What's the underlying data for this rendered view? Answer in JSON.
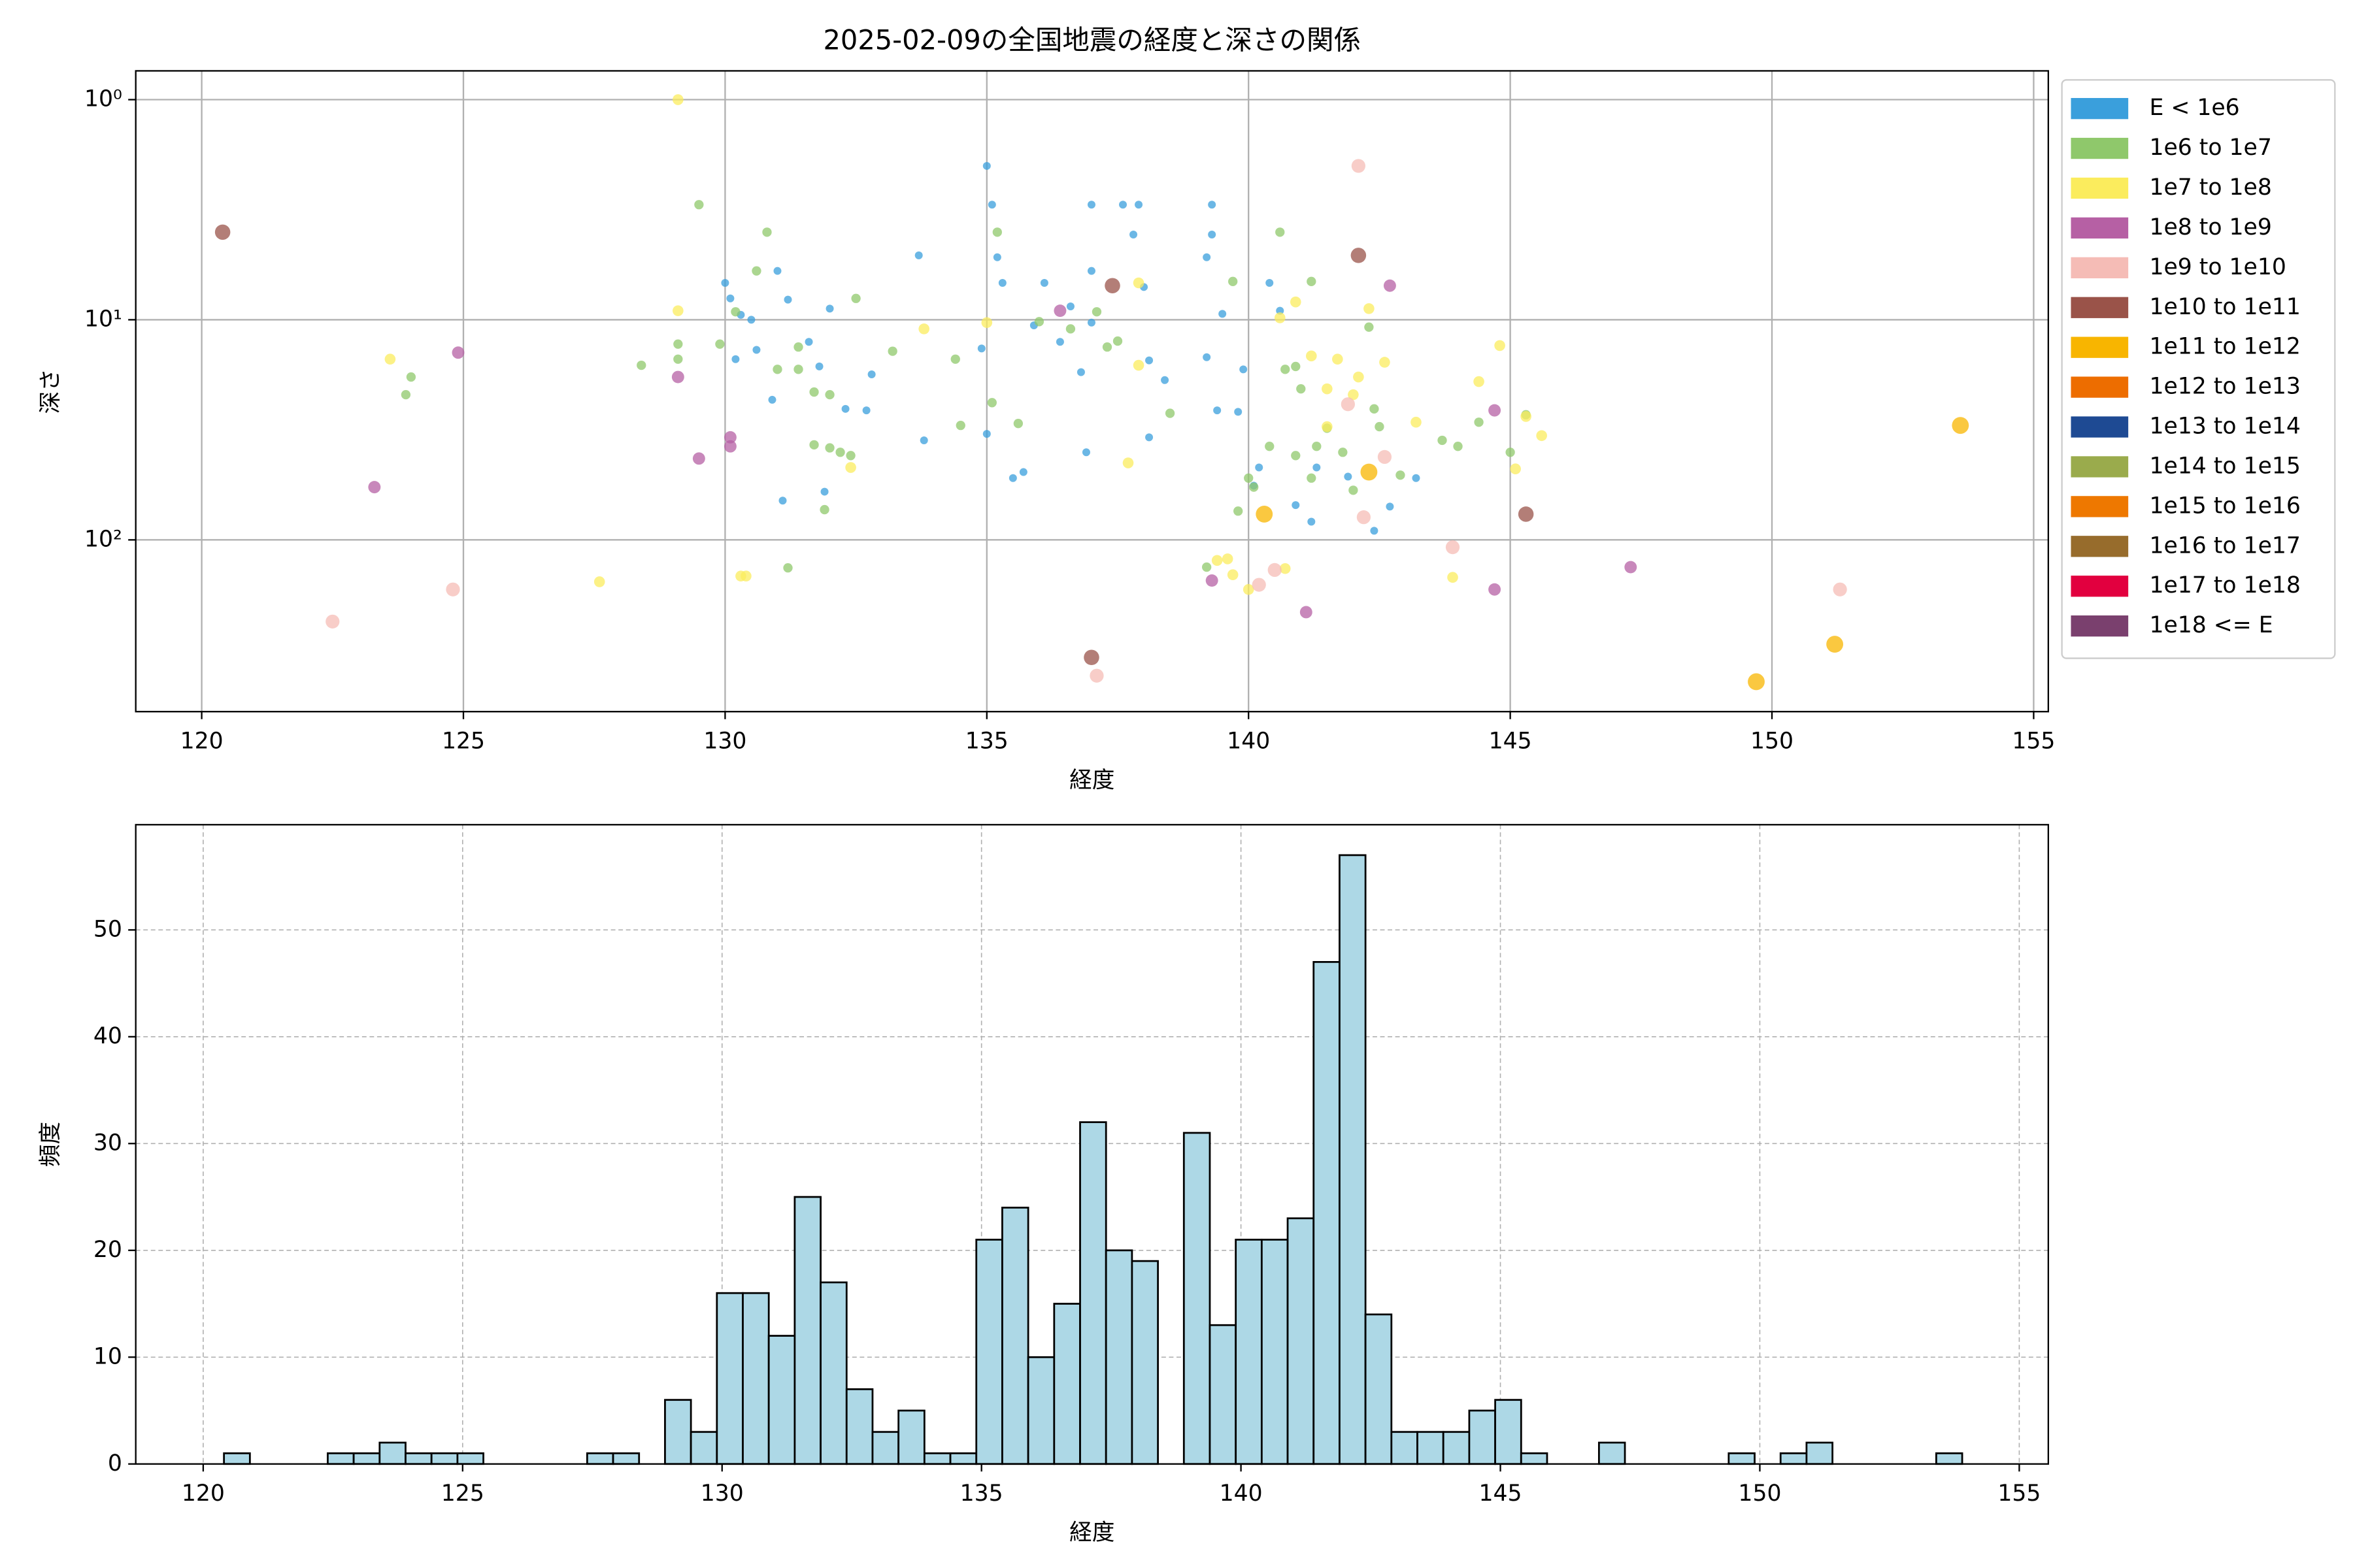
{
  "chart_data": [
    {
      "type": "scatter",
      "title": "2025-02-09の全国地震の経度と深さの関係",
      "xlabel": "経度",
      "ylabel": "深さ",
      "xlim": [
        118.74,
        155.28
      ],
      "ylim": [
        0.74,
        603
      ],
      "yscale": "log",
      "y_inverted": true,
      "grid": true,
      "legend": "outside right",
      "xticks": [
        120,
        125,
        130,
        135,
        140,
        145,
        150,
        155
      ],
      "yticks": [
        {
          "value": 1,
          "label": "10⁰"
        },
        {
          "value": 10,
          "label": "10¹"
        },
        {
          "value": 100,
          "label": "10²"
        }
      ],
      "series": [
        {
          "name": "E < 1e6",
          "color": "#3a9fdc",
          "x": [
            130.0,
            130.1,
            130.3,
            130.5,
            130.2,
            130.6,
            131.0,
            131.2,
            130.9,
            131.1,
            131.6,
            131.8,
            131.9,
            132.0,
            132.3,
            132.7,
            132.8,
            133.7,
            133.8,
            135.0,
            135.1,
            135.2,
            135.3,
            134.9,
            135.0,
            135.5,
            135.7,
            135.9,
            136.1,
            136.4,
            136.6,
            136.8,
            137.0,
            137.0,
            137.0,
            136.9,
            137.6,
            137.9,
            137.8,
            138.0,
            138.1,
            138.1,
            138.4,
            139.2,
            139.2,
            139.3,
            139.3,
            139.5,
            139.4,
            139.8,
            140.2,
            140.4,
            140.6,
            140.9,
            141.2,
            141.3,
            141.9,
            142.4,
            142.7,
            143.2,
            140.1,
            139.9
          ],
          "values": [
            6.8,
            8.0,
            9.5,
            10,
            15.1,
            13.7,
            6.0,
            8.1,
            23.1,
            66.3,
            12.6,
            16.3,
            60.4,
            8.9,
            25.4,
            25.8,
            17.7,
            5.1,
            35.3,
            2.0,
            3.0,
            5.2,
            6.8,
            13.5,
            33.0,
            52.4,
            49.2,
            10.6,
            6.8,
            12.6,
            8.7,
            17.3,
            3.0,
            6.0,
            10.3,
            40,
            3.0,
            3.0,
            4.1,
            7.1,
            15.3,
            34.2,
            18.8,
            5.2,
            14.8,
            3.0,
            4.1,
            9.4,
            25.8,
            26.2,
            46.9,
            6.8,
            9.1,
            69.5,
            82.7,
            46.9,
            51.6,
            90.9,
            70.6,
            52.4,
            56.7,
            16.8
          ]
        },
        {
          "name": "1e6 to 1e7",
          "color": "#8fc86b",
          "x": [
            128.4,
            129.1,
            129.1,
            129.5,
            129.9,
            130.2,
            130.8,
            130.6,
            131.0,
            131.2,
            131.4,
            131.7,
            131.7,
            132.0,
            131.9,
            132.2,
            132.4,
            132.5,
            133.2,
            134.5,
            134.4,
            135.2,
            135.1,
            135.6,
            136.0,
            136.6,
            137.1,
            137.3,
            137.5,
            138.5,
            139.2,
            139.7,
            139.8,
            140.0,
            140.1,
            140.4,
            140.6,
            140.9,
            141.2,
            140.9,
            141.3,
            141.5,
            141.8,
            142.0,
            142.3,
            142.4,
            142.9,
            143.7,
            144.0,
            144.4,
            145.0,
            145.3,
            123.9,
            124.0,
            131.4,
            132.0,
            140.7,
            141.0,
            142.5,
            141.2
          ],
          "values": [
            16.1,
            12.9,
            15.1,
            3.0,
            12.9,
            9.2,
            4.0,
            6.0,
            16.8,
            134,
            16.8,
            37,
            21.3,
            38.2,
            72.9,
            40,
            41.4,
            8.0,
            13.9,
            30.2,
            15.1,
            4.0,
            23.8,
            29.6,
            10.2,
            11,
            9.2,
            13.3,
            12.5,
            26.6,
            133,
            6.7,
            74,
            52.4,
            57.6,
            37.6,
            4.0,
            16.3,
            6.7,
            41.4,
            37.6,
            31.1,
            40,
            59.5,
            10.8,
            25.4,
            50.8,
            35.3,
            37.6,
            29.2,
            40,
            27.0,
            21.9,
            18.2,
            13.3,
            21.9,
            16.8,
            20.6,
            30.6,
            52.4
          ]
        },
        {
          "name": "1e7 to 1e8",
          "color": "#fbec5d",
          "x": [
            129.1,
            123.6,
            127.6,
            129.1,
            130.3,
            130.4,
            132.4,
            135.0,
            133.8,
            137.9,
            137.7,
            139.4,
            139.6,
            140.0,
            139.7,
            140.7,
            140.6,
            140.9,
            141.2,
            141.5,
            141.7,
            142.1,
            142.3,
            142.6,
            143.2,
            143.9,
            144.4,
            144.8,
            145.1,
            145.3,
            145.6,
            137.9,
            141.5,
            142.0
          ],
          "values": [
            1.0,
            15.1,
            155,
            9.1,
            146,
            146,
            46.9,
            10.3,
            11,
            16.1,
            44.7,
            124,
            122,
            168,
            144,
            135,
            9.8,
            8.3,
            14.6,
            20.6,
            15.1,
            18.2,
            8.9,
            15.6,
            29.2,
            148,
            19.1,
            13.1,
            47.6,
            27.5,
            33.6,
            6.8,
            30.6,
            21.9
          ]
        },
        {
          "name": "1e8 to 1e9",
          "color": "#b660a4",
          "x": [
            123.3,
            124.9,
            129.1,
            129.5,
            130.1,
            130.1,
            136.4,
            142.7,
            144.7,
            144.7,
            147.3,
            139.3,
            141.1
          ],
          "values": [
            57.6,
            14.1,
            18.2,
            42.7,
            34.2,
            37.6,
            9.1,
            7.0,
            25.8,
            168,
            133,
            153,
            213
          ]
        },
        {
          "name": "1e9 to 1e10",
          "color": "#f5bcb6",
          "x": [
            122.5,
            124.8,
            142.1,
            137.1,
            143.9,
            151.3,
            140.5,
            140.2,
            142.6,
            142.2,
            141.9
          ],
          "values": [
            235,
            168,
            2.0,
            414,
            108,
            168,
            137,
            160,
            42.0,
            78.9,
            24.2
          ]
        },
        {
          "name": "1e10 to 1e11",
          "color": "#9a5349",
          "x": [
            120.4,
            137.0,
            137.4,
            142.1,
            145.3
          ],
          "values": [
            4.0,
            342,
            7.0,
            5.1,
            76.4
          ]
        },
        {
          "name": "1e11 to 1e12",
          "color": "#f8b500",
          "x": [
            149.7,
            151.2,
            153.6,
            142.3,
            140.3
          ],
          "values": [
            441,
            298,
            30.2,
            49.2,
            76.4
          ]
        },
        {
          "name": "1e12 to 1e13",
          "color": "#ed6d00",
          "x": [],
          "values": []
        },
        {
          "name": "1e13 to 1e14",
          "color": "#1e4a93",
          "x": [],
          "values": []
        },
        {
          "name": "1e14 to 1e15",
          "color": "#9aab4c",
          "x": [],
          "values": []
        },
        {
          "name": "1e15 to 1e16",
          "color": "#ee7800",
          "x": [],
          "values": []
        },
        {
          "name": "1e16 to 1e17",
          "color": "#976c2c",
          "x": [],
          "values": []
        },
        {
          "name": "1e17 to 1e18",
          "color": "#e2003f",
          "x": [],
          "values": []
        },
        {
          "name": "1e18 <= E",
          "color": "#7a406e",
          "x": [],
          "values": []
        }
      ]
    },
    {
      "type": "histogram",
      "xlabel": "経度",
      "ylabel": "頻度",
      "color": "#add8e6",
      "edgecolor": "#000000",
      "grid": true,
      "grid_style": "dashed",
      "xlim": [
        118.7,
        155.56
      ],
      "ylim": [
        0,
        59.85
      ],
      "xticks": [
        120,
        125,
        130,
        135,
        140,
        145,
        150,
        155
      ],
      "yticks": [
        0,
        10,
        20,
        30,
        40,
        50
      ],
      "bins": [
        120.4,
        120.9,
        121.4,
        121.9,
        122.4,
        122.9,
        123.4,
        123.9,
        124.4,
        124.9,
        125.4,
        125.9,
        126.4,
        126.9,
        127.4,
        127.9,
        128.4,
        128.9,
        129.4,
        129.9,
        130.4,
        130.9,
        131.4,
        131.9,
        132.4,
        132.9,
        133.4,
        133.9,
        134.4,
        134.9,
        135.4,
        135.9,
        136.4,
        136.9,
        137.4,
        137.9,
        138.4,
        138.9,
        139.4,
        139.9,
        140.4,
        140.9,
        141.4,
        141.9,
        142.4,
        142.9,
        143.4,
        143.9,
        144.4,
        144.9,
        145.4,
        145.9,
        146.4,
        146.9,
        147.4,
        147.9,
        148.4,
        148.9,
        149.4,
        149.9,
        150.4,
        150.9,
        151.4,
        151.9,
        152.4,
        152.9,
        153.4,
        153.9
      ],
      "values": [
        1,
        0,
        0,
        0,
        1,
        1,
        2,
        1,
        1,
        1,
        0,
        0,
        0,
        0,
        1,
        1,
        0,
        6,
        3,
        16,
        16,
        12,
        25,
        17,
        7,
        3,
        5,
        1,
        1,
        21,
        24,
        10,
        15,
        32,
        20,
        19,
        0,
        31,
        13,
        21,
        21,
        23,
        47,
        57,
        14,
        3,
        3,
        3,
        5,
        6,
        1,
        0,
        0,
        2,
        0,
        0,
        0,
        0,
        1,
        0,
        1,
        2,
        0,
        0,
        0,
        0,
        1
      ]
    }
  ]
}
